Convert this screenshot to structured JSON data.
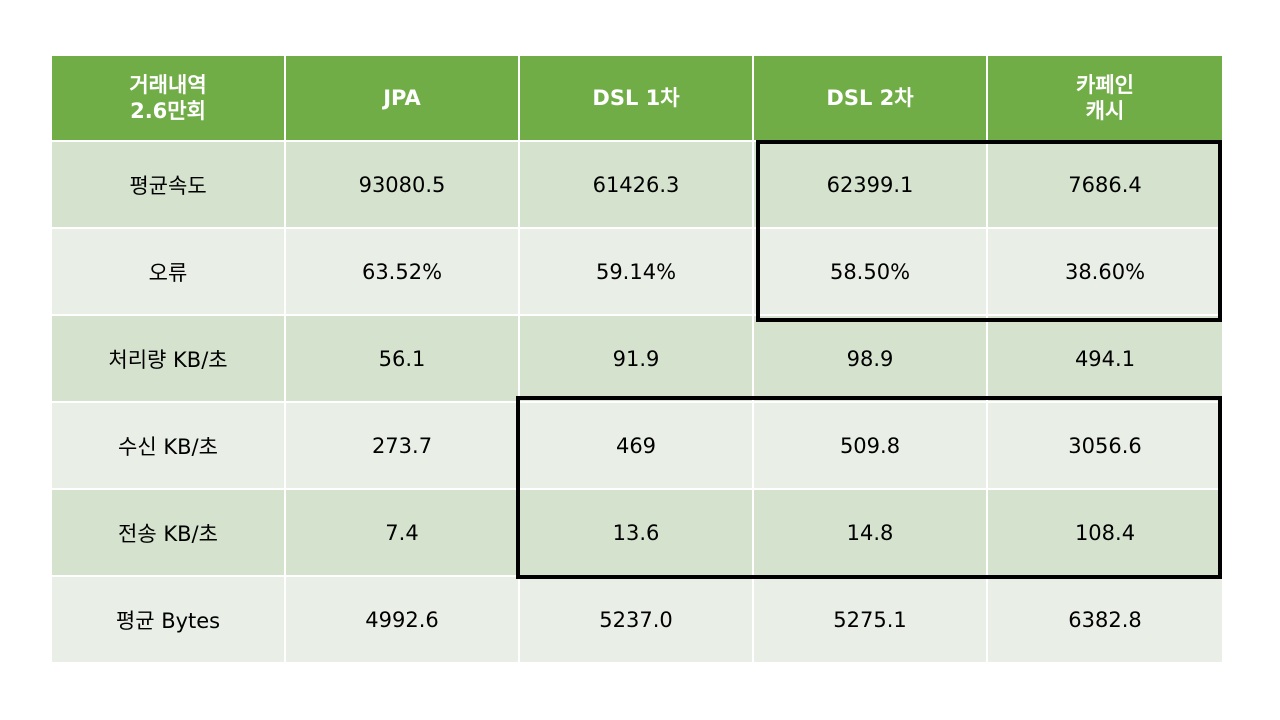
{
  "table": {
    "header": [
      [
        "거래내역",
        "2.6만회"
      ],
      [
        "JPA"
      ],
      [
        "DSL 1차"
      ],
      [
        "DSL 2차"
      ],
      [
        "카페인",
        "캐시"
      ]
    ],
    "rows": [
      {
        "label": "평균속도",
        "values": [
          "93080.5",
          "61426.3",
          "62399.1",
          "7686.4"
        ]
      },
      {
        "label": "오류",
        "values": [
          "63.52%",
          "59.14%",
          "58.50%",
          "38.60%"
        ]
      },
      {
        "label": "처리량 KB/초",
        "values": [
          "56.1",
          "91.9",
          "98.9",
          "494.1"
        ]
      },
      {
        "label": "수신 KB/초",
        "values": [
          "273.7",
          "469",
          "509.8",
          "3056.6"
        ]
      },
      {
        "label": "전송 KB/초",
        "values": [
          "7.4",
          "13.6",
          "14.8",
          "108.4"
        ]
      },
      {
        "label": "평균 Bytes",
        "values": [
          "4992.6",
          "5237.0",
          "5275.1",
          "6382.8"
        ]
      }
    ]
  },
  "colors": {
    "header_bg": "#70ad47",
    "row_odd_bg": "#d5e2cd",
    "row_even_bg": "#e9efe6",
    "highlight_border": "#000000"
  }
}
